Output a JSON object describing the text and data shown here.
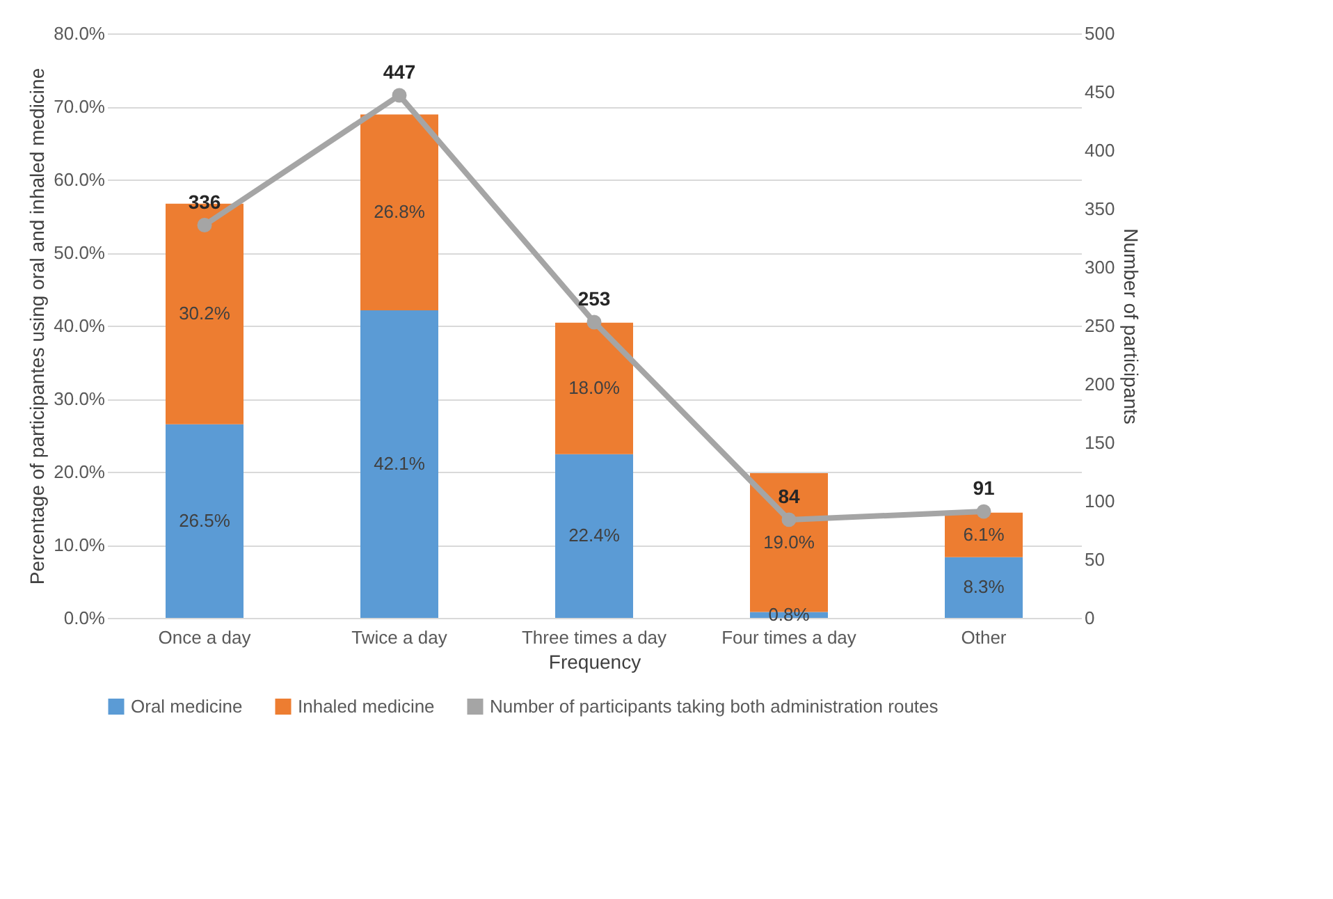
{
  "chart_data": {
    "type": "bar",
    "stacked": true,
    "categories": [
      "Once a day",
      "Twice a day",
      "Three times a day",
      "Four times a day",
      "Other"
    ],
    "xlabel": "Frequency",
    "ylabel": "Percentage of participantes using oral and inhaled medicine",
    "y2label": "Number of participants",
    "ylim": [
      0,
      80
    ],
    "yticks": [
      {
        "value": 0,
        "label": "0.0%"
      },
      {
        "value": 10,
        "label": "10.0%"
      },
      {
        "value": 20,
        "label": "20.0%"
      },
      {
        "value": 30,
        "label": "30.0%"
      },
      {
        "value": 40,
        "label": "40.0%"
      },
      {
        "value": 50,
        "label": "50.0%"
      },
      {
        "value": 60,
        "label": "60.0%"
      },
      {
        "value": 70,
        "label": "70.0%"
      },
      {
        "value": 80,
        "label": "80.0%"
      }
    ],
    "y2lim": [
      0,
      500
    ],
    "y2ticks": [
      0,
      50,
      100,
      150,
      200,
      250,
      300,
      350,
      400,
      450,
      500
    ],
    "grid": "y",
    "legend": "bottom",
    "series": [
      {
        "name": "Oral medicine",
        "color": "#5b9bd5",
        "values": [
          26.5,
          42.1,
          22.4,
          0.8,
          8.3
        ],
        "value_labels": [
          "26.5%",
          "42.1%",
          "22.4%",
          "0.8%",
          "8.3%"
        ]
      },
      {
        "name": "Inhaled medicine",
        "color": "#ed7d31",
        "values": [
          30.2,
          26.8,
          18.0,
          19.0,
          6.1
        ],
        "value_labels": [
          "30.2%",
          "26.8%",
          "18.0%",
          "19.0%",
          "6.1%"
        ]
      },
      {
        "name": "Number of participants taking both administration routes",
        "type": "line",
        "axis": "y2",
        "color": "#a5a5a5",
        "marker": "circle",
        "line_style": "solid",
        "values": [
          336,
          447,
          253,
          84,
          91
        ],
        "value_labels": [
          "336",
          "447",
          "253",
          "84",
          "91"
        ]
      }
    ]
  }
}
